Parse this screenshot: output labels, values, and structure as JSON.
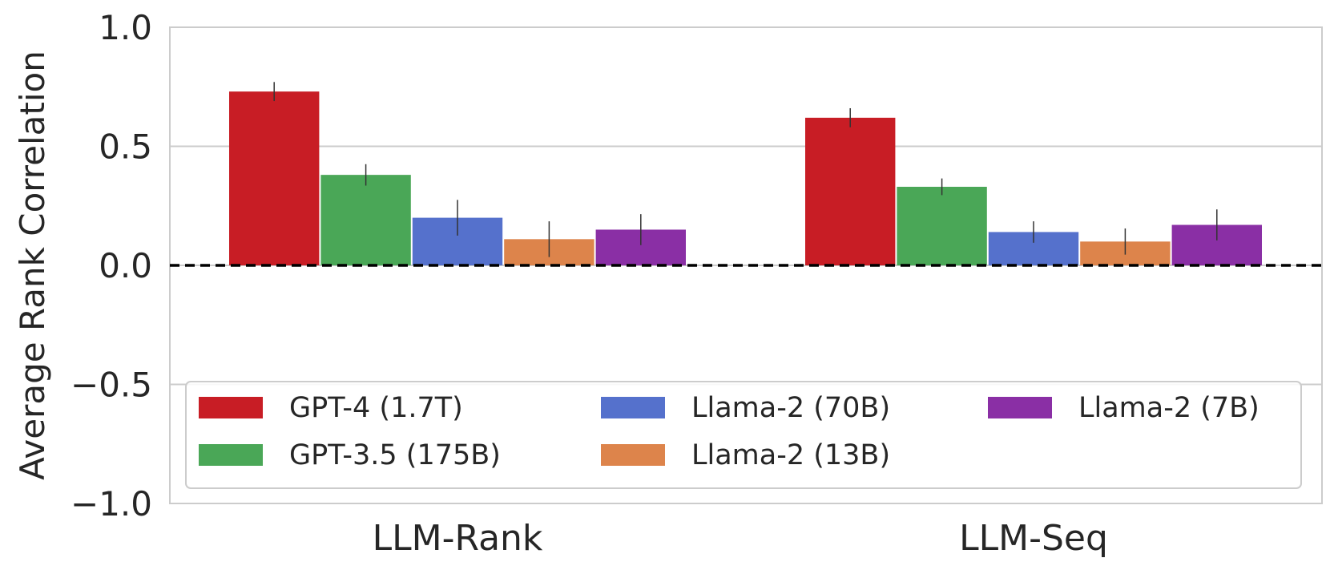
{
  "chart_data": {
    "type": "bar",
    "title": "",
    "xlabel": "",
    "ylabel": "Average Rank Correlation",
    "ylim": [
      -1.0,
      1.0
    ],
    "yticks": [
      {
        "value": -1.0,
        "label": "−1.0"
      },
      {
        "value": -0.5,
        "label": "−0.5"
      },
      {
        "value": 0.0,
        "label": "0.0"
      },
      {
        "value": 0.5,
        "label": "0.5"
      },
      {
        "value": 1.0,
        "label": "1.0"
      }
    ],
    "grid": true,
    "reference_line": {
      "y": 0.0,
      "style": "dashed",
      "color": "#000000"
    },
    "legend_position": "lower-center",
    "categories": [
      "LLM-Rank",
      "LLM-Seq"
    ],
    "series": [
      {
        "name": "GPT-4 (1.7T)",
        "color": "#c81d25",
        "values": [
          0.73,
          0.62
        ],
        "err": [
          0.04,
          0.04
        ]
      },
      {
        "name": "GPT-3.5 (175B)",
        "color": "#4aa757",
        "values": [
          0.38,
          0.33
        ],
        "err": [
          0.045,
          0.035
        ]
      },
      {
        "name": "Llama-2 (70B)",
        "color": "#5571cc",
        "values": [
          0.2,
          0.14
        ],
        "err": [
          0.075,
          0.045
        ]
      },
      {
        "name": "Llama-2 (13B)",
        "color": "#dd844b",
        "values": [
          0.11,
          0.1
        ],
        "err": [
          0.075,
          0.055
        ]
      },
      {
        "name": "Llama-2 (7B)",
        "color": "#8a2fa5",
        "values": [
          0.15,
          0.17
        ],
        "err": [
          0.065,
          0.065
        ]
      }
    ]
  }
}
